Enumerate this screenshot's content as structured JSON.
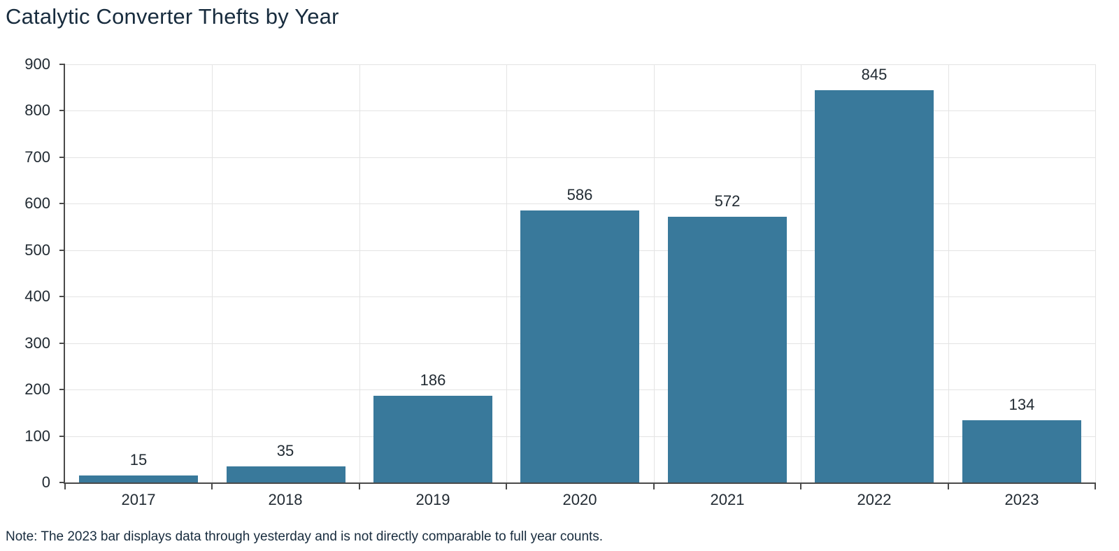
{
  "title": "Catalytic Converter Thefts by Year",
  "note": "Note: The 2023 bar displays data through yesterday and is not directly comparable to full year counts.",
  "colors": {
    "bar": "#39799b",
    "grid": "#e4e4e4",
    "axis": "#4a4a4a",
    "tick_text": "#222b33",
    "heading_text": "#182c3e"
  },
  "chart_data": {
    "type": "bar",
    "title": "Catalytic Converter Thefts by Year",
    "categories": [
      "2017",
      "2018",
      "2019",
      "2020",
      "2021",
      "2022",
      "2023"
    ],
    "values": [
      15,
      35,
      186,
      586,
      572,
      845,
      134
    ],
    "xlabel": "",
    "ylabel": "",
    "ylim": [
      0,
      900
    ],
    "yticks": [
      0,
      100,
      200,
      300,
      400,
      500,
      600,
      700,
      800,
      900
    ],
    "grid": true,
    "legend": false,
    "bar_value_labels": true
  }
}
